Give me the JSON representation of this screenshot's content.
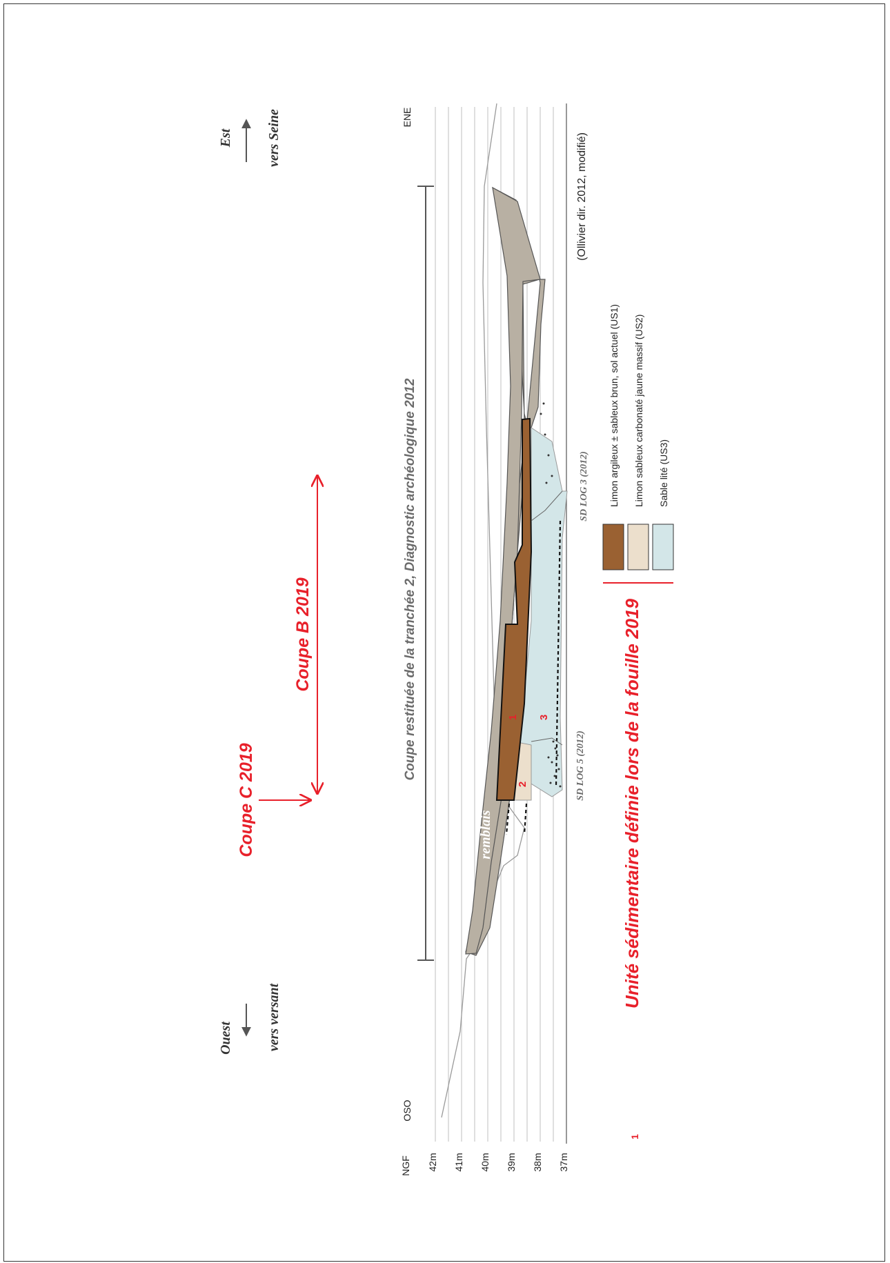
{
  "figure": {
    "title": "Coupe restituée de la tranchée 2, Diagnostic archéologique 2012",
    "source": "(Ollivier dir. 2012, modifié)",
    "west_label": "Ouest",
    "west_sub": "vers versant",
    "east_label": "Est",
    "east_sub": "vers Seine",
    "oso": "OSO",
    "ene": "ENE",
    "ngf": "NGF",
    "coupe_c": "Coupe C 2019",
    "coupe_b": "Coupe B 2019",
    "remblais": "remblais",
    "sd_log5": "SD LOG 5 (2012)",
    "sd_log3": "SD LOG 3 (2012)",
    "unit_num": "1",
    "unit_caption": "Unité sédimentaire définie lors de la fouille 2019",
    "unit_labels": [
      "1",
      "2",
      "3"
    ],
    "colors": {
      "us1": "#9a6132",
      "us2": "#ecdfcc",
      "us3": "#d3e6e8",
      "remblais": "#b8b0a3",
      "accent": "#e8202a",
      "grey_text": "#6b6b6b"
    }
  },
  "chart_data": {
    "type": "diagram",
    "axis": {
      "label": "NGF",
      "ticks": [
        "42m",
        "41m",
        "40m",
        "39m",
        "38m",
        "37m"
      ],
      "range": [
        37,
        42
      ]
    }
  },
  "legend": [
    {
      "color": "us1",
      "text": "Limon argileux ± sableux brun, sol actuel (US1)"
    },
    {
      "color": "us2",
      "text": "Limon sableux carbonaté jaune massif (US2)"
    },
    {
      "color": "us3",
      "text": "Sable lité (US3)"
    }
  ]
}
